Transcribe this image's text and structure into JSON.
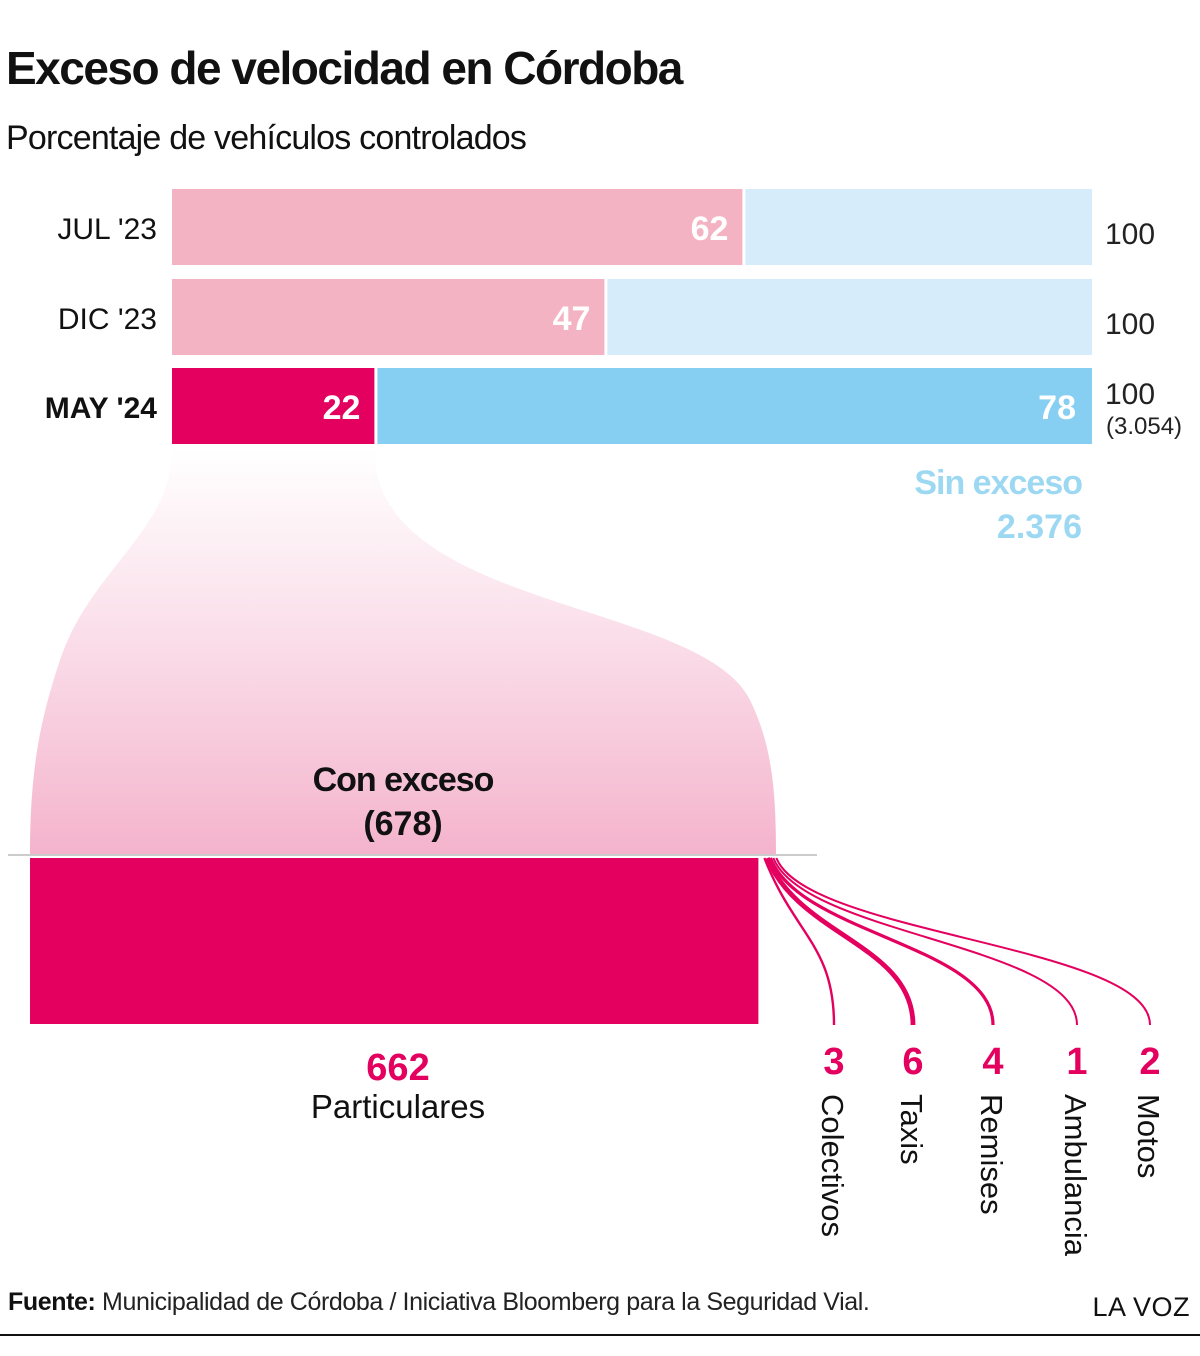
{
  "title": "Exceso de velocidad en Córdoba",
  "subtitle": "Porcentaje de vehículos controlados",
  "colors": {
    "accent": "#e4005f",
    "accent_light": "#f4b3c2",
    "blue": "#86cff2",
    "blue_light": "#d6ecfa",
    "blue_label": "#9dd8f3"
  },
  "chart_data": {
    "type": "bar",
    "orientation": "horizontal",
    "stacked": true,
    "xlim": [
      0,
      100
    ],
    "categories": [
      "JUL '23",
      "DIC '23",
      "MAY '24"
    ],
    "highlight_category": "MAY '24",
    "series": [
      {
        "name": "Con exceso",
        "values": [
          62,
          47,
          22
        ],
        "labels": [
          "62",
          "47",
          "22"
        ]
      },
      {
        "name": "Sin exceso",
        "values": [
          38,
          53,
          78
        ],
        "labels": [
          "",
          "",
          "78"
        ]
      }
    ],
    "totals": [
      "100",
      "100",
      "100"
    ],
    "total_detail": "(3.054)",
    "sin_exceso_label": "Sin exceso",
    "sin_exceso_count": "2.376",
    "con_exceso_label": "Con exceso",
    "con_exceso_count": "(678)",
    "breakdown": {
      "type": "flow",
      "total": 678,
      "main": {
        "label": "Particulares",
        "value": 662,
        "value_text": "662"
      },
      "others": [
        {
          "label": "Colectivos",
          "value": 3,
          "value_text": "3"
        },
        {
          "label": "Taxis",
          "value": 6,
          "value_text": "6"
        },
        {
          "label": "Remises",
          "value": 4,
          "value_text": "4"
        },
        {
          "label": "Ambulancia",
          "value": 1,
          "value_text": "1"
        },
        {
          "label": "Motos",
          "value": 2,
          "value_text": "2"
        }
      ]
    }
  },
  "footer": {
    "source_label": "Fuente:",
    "source_text": " Municipalidad de Córdoba / Iniciativa Bloomberg para la Seguridad Vial."
  },
  "brand": "LA VOZ"
}
